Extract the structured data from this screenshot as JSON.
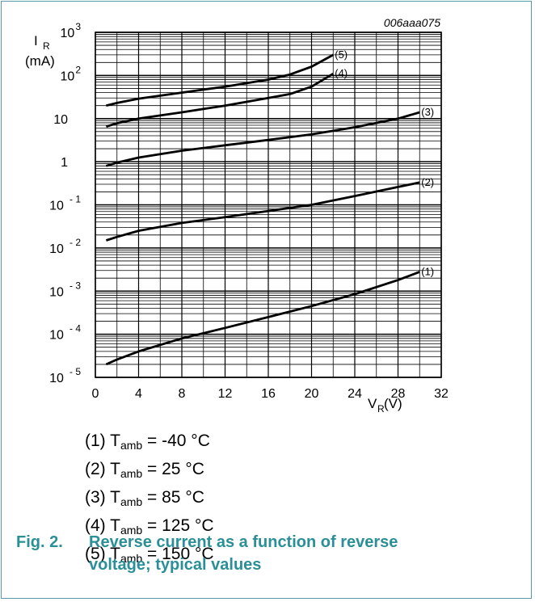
{
  "figure_id": "006aaa075",
  "chart_data": {
    "type": "line",
    "ylabel": "I",
    "ylabel_sub": "R",
    "ylabel_unit": "(mA)",
    "xlabel": "V",
    "xlabel_sub": "R",
    "xlabel_unit": " (V)",
    "x_scale": "linear",
    "y_scale": "log",
    "xlim": [
      0,
      32
    ],
    "ylim": [
      1e-05,
      1000
    ],
    "grid": true,
    "x_ticks": [
      "0",
      "4",
      "8",
      "12",
      "16",
      "20",
      "24",
      "28",
      "32"
    ],
    "y_ticks": [
      {
        "value": 1000,
        "base": "10",
        "exp": "3"
      },
      {
        "value": 100,
        "base": "10",
        "exp": "2"
      },
      {
        "value": 10,
        "base": "10",
        "exp": ""
      },
      {
        "value": 1,
        "base": "1",
        "exp": ""
      },
      {
        "value": 0.1,
        "base": "10",
        "exp": "- 1"
      },
      {
        "value": 0.01,
        "base": "10",
        "exp": "- 2"
      },
      {
        "value": 0.001,
        "base": "10",
        "exp": "- 3"
      },
      {
        "value": 0.0001,
        "base": "10",
        "exp": "- 4"
      },
      {
        "value": 1e-05,
        "base": "10",
        "exp": "- 5"
      }
    ],
    "series": [
      {
        "label": "(1)",
        "x": [
          1,
          2,
          4,
          8,
          12,
          16,
          20,
          24,
          28,
          30
        ],
        "y": [
          2e-05,
          2.6e-05,
          4e-05,
          8e-05,
          0.00014,
          0.00025,
          0.00045,
          0.00085,
          0.0018,
          0.0028
        ]
      },
      {
        "label": "(2)",
        "x": [
          1,
          2,
          4,
          8,
          12,
          16,
          20,
          24,
          28,
          30
        ],
        "y": [
          0.015,
          0.018,
          0.025,
          0.038,
          0.052,
          0.072,
          0.1,
          0.16,
          0.26,
          0.33
        ]
      },
      {
        "label": "(3)",
        "x": [
          1,
          2,
          4,
          8,
          12,
          16,
          20,
          24,
          28,
          30
        ],
        "y": [
          0.8,
          0.95,
          1.25,
          1.8,
          2.4,
          3.2,
          4.3,
          6.3,
          10,
          14
        ]
      },
      {
        "label": "(4)",
        "x": [
          1,
          2,
          4,
          8,
          12,
          16,
          18,
          20,
          22
        ],
        "y": [
          6.5,
          7.8,
          10,
          14,
          20,
          30,
          37,
          55,
          110
        ]
      },
      {
        "label": "(5)",
        "x": [
          1,
          2,
          4,
          8,
          12,
          16,
          18,
          20,
          22
        ],
        "y": [
          20,
          23,
          29,
          40,
          55,
          80,
          105,
          160,
          300
        ]
      }
    ]
  },
  "legend": [
    {
      "num": "(1) T",
      "sub": "amb",
      "rest": " = -40 °C"
    },
    {
      "num": "(2) T",
      "sub": "amb",
      "rest": " = 25 °C"
    },
    {
      "num": "(3) T",
      "sub": "amb",
      "rest": " = 85 °C"
    },
    {
      "num": "(4) T",
      "sub": "amb",
      "rest": " = 125 °C"
    },
    {
      "num": "(5) T",
      "sub": "amb",
      "rest": " = 150 °C"
    }
  ],
  "caption": {
    "number": "Fig. 2.",
    "text": "Reverse current as a function of reverse voltage; typical values"
  }
}
